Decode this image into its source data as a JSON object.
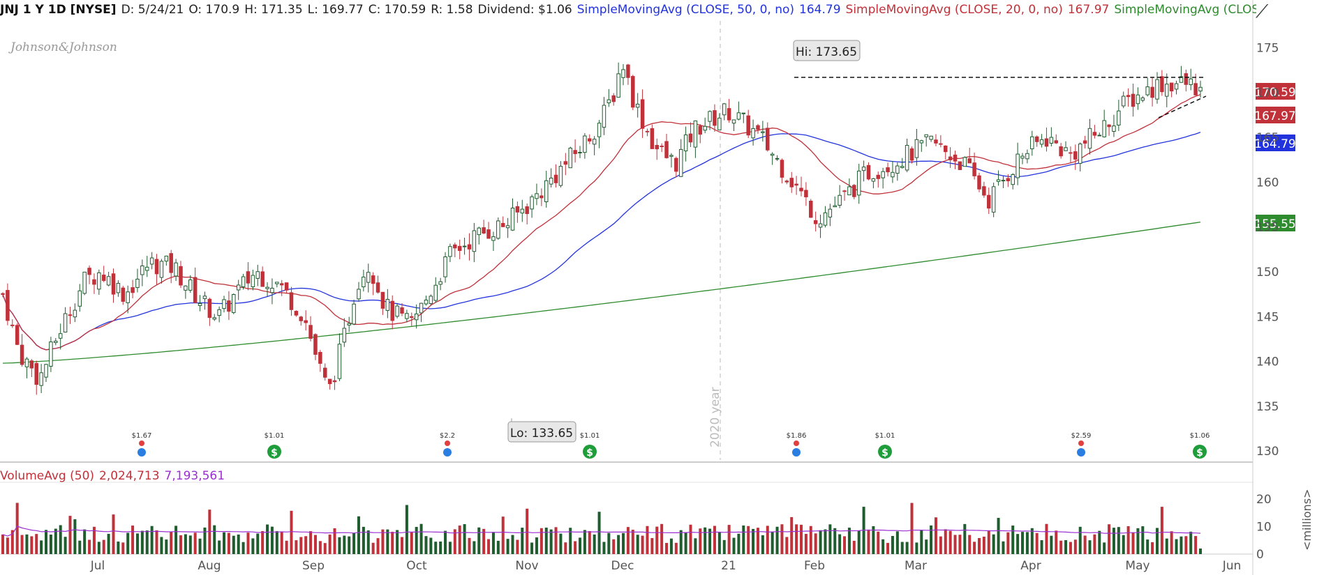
{
  "header": {
    "symbol": "JNJ 1 Y 1D [NYSE]",
    "date": "D: 5/24/21",
    "open": "O: 170.9",
    "high": "H: 171.35",
    "low": "L: 169.77",
    "close": "C: 170.59",
    "range": "R: 1.58",
    "dividend": "Dividend: $1.06",
    "sma50_label": "SimpleMovingAvg (CLOSE, 50, 0, no)",
    "sma50_value": "164.79",
    "sma20_label": "SimpleMovingAvg (CLOSE, 20, 0, no)",
    "sma20_value": "167.97",
    "sma200_label": "SimpleMovingAvg (CLOSE,..."
  },
  "logo": "Johnson&Johnson",
  "volume_header": {
    "label": "VolumeAvg (50)",
    "volume": "2,024,713",
    "avg": "7,193,561"
  },
  "colors": {
    "up": "#1f5c2e",
    "down": "#c0313a",
    "sma50": "#2233dd",
    "sma20": "#c0313a",
    "sma200": "#2e8b2e",
    "avg_line": "#9b30d0",
    "grid_text": "#555555"
  },
  "chart_data": {
    "type": "candlestick",
    "title": "JNJ 1 Y 1D [NYSE]",
    "price_axis": {
      "ylim": [
        129,
        178
      ],
      "ticks": [
        130,
        135,
        140,
        145,
        150,
        155,
        160,
        165,
        170,
        175
      ]
    },
    "volume_axis": {
      "ylim": [
        0,
        24
      ],
      "ticks": [
        0,
        10,
        20
      ],
      "label": "<millions>"
    },
    "x_labels": [
      "Jul",
      "Aug",
      "Sep",
      "Oct",
      "Nov",
      "Dec",
      "21",
      "Feb",
      "Mar",
      "Apr",
      "May",
      "Jun"
    ],
    "year_marker": "2020 year",
    "annotations": {
      "hi": "Hi: 173.65",
      "lo": "Lo: 133.65"
    },
    "price_badges": [
      {
        "value": "170.59",
        "color": "#c0313a"
      },
      {
        "value": "167.97",
        "color": "#c0313a"
      },
      {
        "value": "164.79",
        "color": "#2233dd"
      },
      {
        "value": "155.55",
        "color": "#2e8b2e"
      }
    ],
    "events": [
      {
        "label": "$1.67",
        "type": "earnings"
      },
      {
        "label": "$1.01",
        "type": "dividend"
      },
      {
        "label": "$2.2",
        "type": "earnings"
      },
      {
        "label": "$1.01",
        "type": "dividend"
      },
      {
        "label": "$1.86",
        "type": "earnings"
      },
      {
        "label": "$1.01",
        "type": "dividend"
      },
      {
        "label": "$2.59",
        "type": "earnings"
      },
      {
        "label": "$1.06",
        "type": "dividend"
      }
    ],
    "close_keypoints": [
      [
        147.5,
        0
      ],
      [
        141,
        0.04
      ],
      [
        138,
        0.09
      ],
      [
        143.5,
        0.14
      ],
      [
        149,
        0.2
      ],
      [
        150,
        0.24
      ],
      [
        147.5,
        0.3
      ],
      [
        151,
        0.36
      ],
      [
        150.5,
        0.42
      ],
      [
        147,
        0.48
      ],
      [
        145,
        0.53
      ],
      [
        148,
        0.58
      ],
      [
        150,
        0.62
      ],
      [
        148.5,
        0.68
      ],
      [
        145,
        0.74
      ],
      [
        139,
        0.78
      ],
      [
        136.5,
        0.8
      ],
      [
        143,
        0.84
      ],
      [
        149,
        0.87
      ],
      [
        151,
        0.9
      ],
      [
        146,
        0.94
      ],
      [
        144,
        1.0
      ],
      [
        147,
        1.04
      ],
      [
        152,
        1.1
      ],
      [
        154,
        1.16
      ],
      [
        155.5,
        1.24
      ],
      [
        158,
        1.3
      ],
      [
        161,
        1.36
      ],
      [
        164,
        1.42
      ],
      [
        167,
        1.47
      ],
      [
        170,
        1.5
      ],
      [
        173.65,
        1.52
      ],
      [
        169,
        1.55
      ],
      [
        164,
        1.6
      ],
      [
        162,
        1.65
      ],
      [
        166,
        1.7
      ],
      [
        168,
        1.78
      ],
      [
        165,
        1.86
      ],
      [
        160,
        1.94
      ],
      [
        156,
        2.0
      ],
      [
        158,
        2.06
      ],
      [
        161,
        2.12
      ],
      [
        162.5,
        2.2
      ],
      [
        164.5,
        2.28
      ],
      [
        162,
        2.36
      ],
      [
        158,
        2.42
      ],
      [
        163,
        2.5
      ],
      [
        165,
        2.56
      ],
      [
        163,
        2.62
      ],
      [
        166,
        2.7
      ],
      [
        169,
        2.76
      ],
      [
        171,
        2.84
      ],
      [
        171,
        2.9
      ],
      [
        170.59,
        2.94
      ]
    ]
  }
}
